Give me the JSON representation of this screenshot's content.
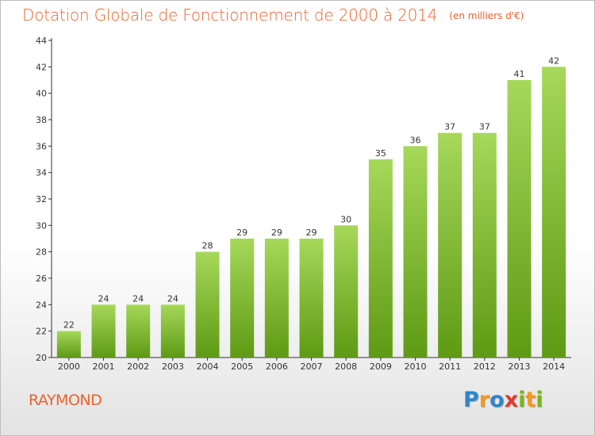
{
  "header": {
    "title": "Dotation Globale de Fonctionnement de 2000 à 2014",
    "subtitle": "(en milliers d'€)"
  },
  "footer": {
    "commune": "RAYMOND",
    "logo": [
      "P",
      "r",
      "o",
      "x",
      "i",
      "t",
      "i"
    ]
  },
  "colors": {
    "title": "#e8632b",
    "bar_top": "#a6d85a",
    "bar_bottom": "#5e9a14",
    "logo_blue": "#2e86c8",
    "logo_orange": "#f39a1e",
    "logo_red": "#e23a2c",
    "logo_green": "#7ab51d"
  },
  "chart_data": {
    "type": "bar",
    "title": "Dotation Globale de Fonctionnement de 2000 à 2014",
    "subtitle": "(en milliers d'€)",
    "categories": [
      "2000",
      "2001",
      "2002",
      "2003",
      "2004",
      "2005",
      "2006",
      "2007",
      "2008",
      "2009",
      "2010",
      "2011",
      "2012",
      "2013",
      "2014"
    ],
    "values": [
      22,
      24,
      24,
      24,
      28,
      29,
      29,
      29,
      30,
      35,
      36,
      37,
      37,
      41,
      42
    ],
    "ylim": [
      20,
      44
    ],
    "yticks": [
      20,
      22,
      24,
      26,
      28,
      30,
      32,
      34,
      36,
      38,
      40,
      42,
      44
    ],
    "grid": false,
    "data_labels": true
  }
}
